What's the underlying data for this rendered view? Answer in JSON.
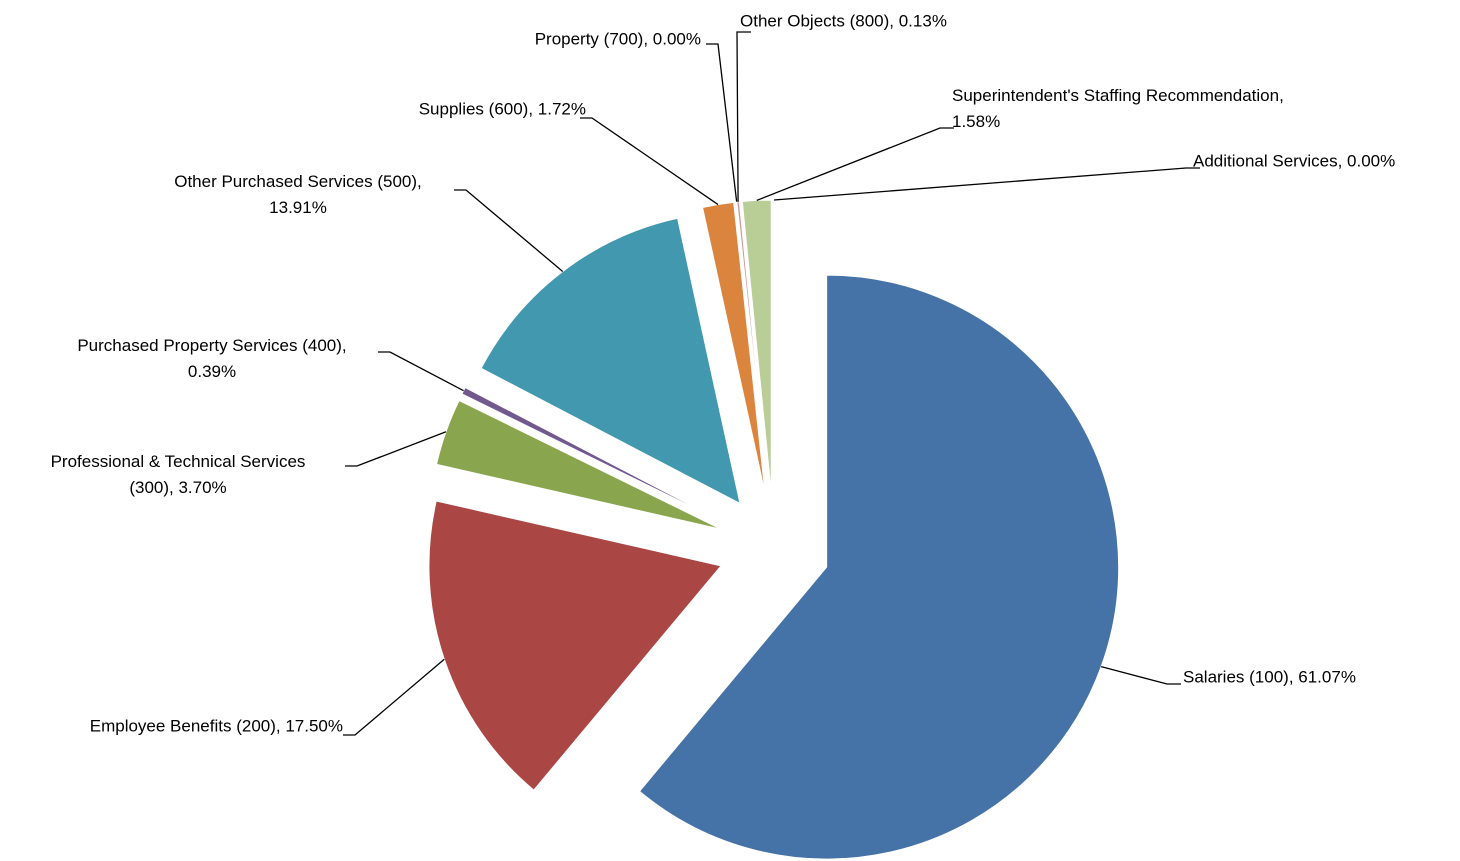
{
  "chart_data": {
    "type": "pie",
    "values": [
      61.07,
      17.5,
      3.7,
      0.39,
      13.91,
      1.72,
      0.0,
      0.13,
      1.58,
      0.0
    ],
    "value_labels": [
      "Salaries (100), 61.07%",
      "Employee Benefits (200), 17.50%",
      "Professional & Technical Services (300), 3.70%",
      "Purchased Property Services (400), 0.39%",
      "Other Purchased Services (500), 13.91%",
      "Supplies (600), 1.72%",
      "Property (700), 0.00%",
      "Other Objects (800), 0.13%",
      "Superintendent's Staffing Recommendation, 1.58%",
      "Additional Services, 0.00%"
    ],
    "colors": [
      "#4572a7",
      "#aa4643",
      "#89a54e",
      "#71588f",
      "#4198af",
      "#db843d",
      "#93a9cf",
      "#d19392",
      "#b9cd96",
      "#a99bbd"
    ]
  }
}
